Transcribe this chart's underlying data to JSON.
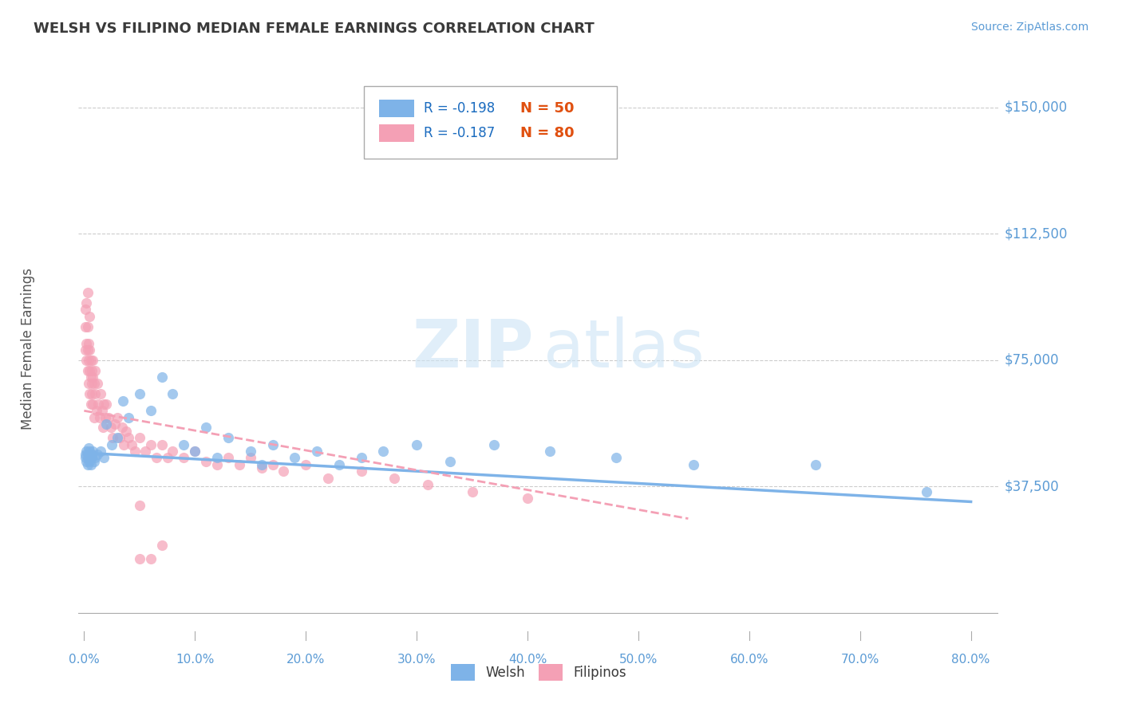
{
  "title": "WELSH VS FILIPINO MEDIAN FEMALE EARNINGS CORRELATION CHART",
  "source": "Source: ZipAtlas.com",
  "ylabel": "Median Female Earnings",
  "xlim": [
    -0.005,
    0.825
  ],
  "ylim": [
    -8000,
    165000
  ],
  "yticks": [
    37500,
    75000,
    112500,
    150000
  ],
  "ytick_labels": [
    "$37,500",
    "$75,000",
    "$112,500",
    "$150,000"
  ],
  "xticks": [
    0.0,
    0.1,
    0.2,
    0.3,
    0.4,
    0.5,
    0.6,
    0.7,
    0.8
  ],
  "xtick_labels": [
    "0.0%",
    "10.0%",
    "20.0%",
    "30.0%",
    "40.0%",
    "50.0%",
    "60.0%",
    "70.0%",
    "80.0%"
  ],
  "welsh_color": "#7eb3e8",
  "filipino_color": "#f4a0b5",
  "welsh_R": -0.198,
  "welsh_N": 50,
  "filipino_R": -0.187,
  "filipino_N": 80,
  "background_color": "#ffffff",
  "grid_color": "#cccccc",
  "title_color": "#3a3a3a",
  "axis_label_color": "#555555",
  "tick_label_color": "#5b9bd5",
  "legend_r_color": "#1a6bbf",
  "legend_n_color": "#e05010",
  "welsh_scatter_x": [
    0.001,
    0.001,
    0.002,
    0.002,
    0.003,
    0.003,
    0.004,
    0.004,
    0.005,
    0.005,
    0.006,
    0.006,
    0.007,
    0.007,
    0.008,
    0.009,
    0.01,
    0.012,
    0.015,
    0.018,
    0.02,
    0.025,
    0.03,
    0.035,
    0.04,
    0.05,
    0.06,
    0.07,
    0.08,
    0.09,
    0.1,
    0.11,
    0.12,
    0.13,
    0.15,
    0.16,
    0.17,
    0.19,
    0.21,
    0.23,
    0.25,
    0.27,
    0.3,
    0.33,
    0.37,
    0.42,
    0.48,
    0.55,
    0.66,
    0.76
  ],
  "welsh_scatter_y": [
    47000,
    46000,
    48000,
    45000,
    44000,
    46000,
    49000,
    47000,
    48000,
    45000,
    46000,
    44000,
    47000,
    46000,
    48000,
    45000,
    46000,
    47000,
    48000,
    46000,
    56000,
    50000,
    52000,
    63000,
    58000,
    65000,
    60000,
    70000,
    65000,
    50000,
    48000,
    55000,
    46000,
    52000,
    48000,
    44000,
    50000,
    46000,
    48000,
    44000,
    46000,
    48000,
    50000,
    45000,
    50000,
    48000,
    46000,
    44000,
    44000,
    36000
  ],
  "filipino_scatter_x": [
    0.001,
    0.001,
    0.001,
    0.002,
    0.002,
    0.002,
    0.003,
    0.003,
    0.003,
    0.003,
    0.004,
    0.004,
    0.004,
    0.005,
    0.005,
    0.005,
    0.005,
    0.006,
    0.006,
    0.006,
    0.007,
    0.007,
    0.007,
    0.008,
    0.008,
    0.008,
    0.009,
    0.009,
    0.01,
    0.01,
    0.011,
    0.012,
    0.013,
    0.014,
    0.015,
    0.016,
    0.017,
    0.018,
    0.019,
    0.02,
    0.022,
    0.024,
    0.026,
    0.028,
    0.03,
    0.032,
    0.034,
    0.036,
    0.038,
    0.04,
    0.043,
    0.046,
    0.05,
    0.055,
    0.06,
    0.065,
    0.07,
    0.075,
    0.08,
    0.09,
    0.1,
    0.11,
    0.12,
    0.13,
    0.14,
    0.15,
    0.16,
    0.17,
    0.18,
    0.2,
    0.22,
    0.25,
    0.28,
    0.31,
    0.35,
    0.4,
    0.05,
    0.05,
    0.06,
    0.07
  ],
  "filipino_scatter_y": [
    85000,
    90000,
    78000,
    92000,
    80000,
    75000,
    85000,
    78000,
    72000,
    95000,
    80000,
    75000,
    68000,
    72000,
    78000,
    65000,
    88000,
    70000,
    75000,
    62000,
    68000,
    72000,
    65000,
    70000,
    62000,
    75000,
    68000,
    58000,
    65000,
    72000,
    60000,
    68000,
    62000,
    58000,
    65000,
    60000,
    55000,
    62000,
    58000,
    62000,
    58000,
    55000,
    52000,
    56000,
    58000,
    52000,
    55000,
    50000,
    54000,
    52000,
    50000,
    48000,
    52000,
    48000,
    50000,
    46000,
    50000,
    46000,
    48000,
    46000,
    48000,
    45000,
    44000,
    46000,
    44000,
    46000,
    43000,
    44000,
    42000,
    44000,
    40000,
    42000,
    40000,
    38000,
    36000,
    34000,
    32000,
    16000,
    16000,
    20000
  ],
  "welsh_trend_x": [
    0.0,
    0.8
  ],
  "welsh_trend_y": [
    47500,
    33000
  ],
  "filipino_trend_x": [
    0.0,
    0.545
  ],
  "filipino_trend_y": [
    60000,
    28000
  ]
}
